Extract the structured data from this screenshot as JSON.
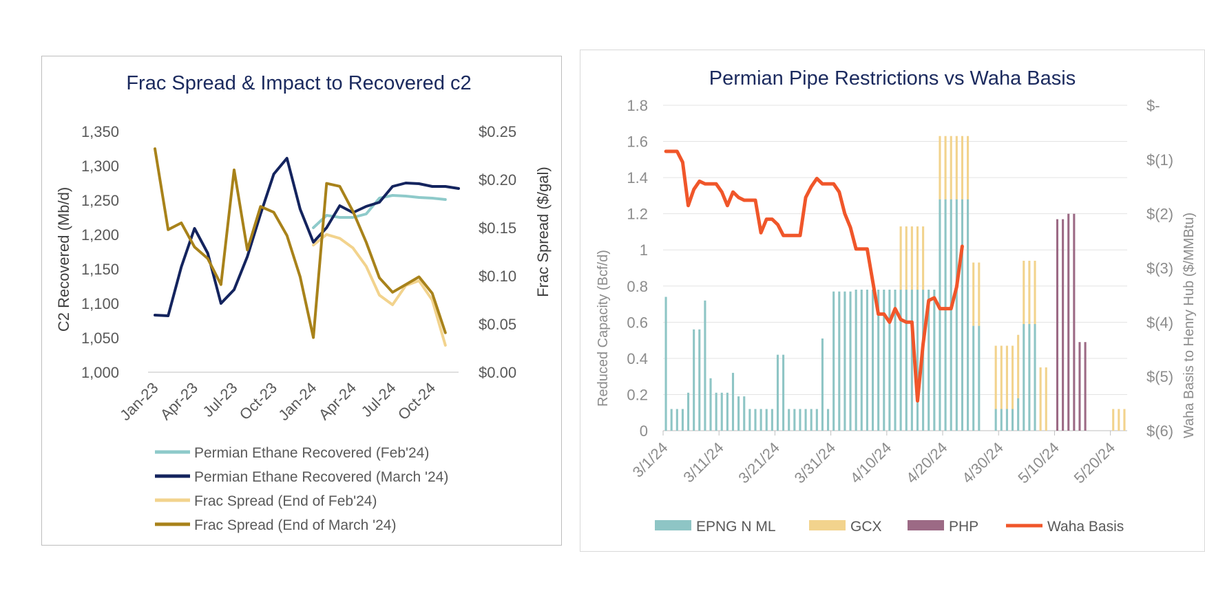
{
  "chart_data": [
    {
      "type": "line",
      "title": "Frac Spread & Impact to Recovered c2",
      "ylabel": "C2 Recovered (Mb/d)",
      "y2label": "Frac Spread ($/gal)",
      "ylim": [
        1000,
        1350
      ],
      "y2lim": [
        0.0,
        0.25
      ],
      "y_ticks": [
        "1,000",
        "1,050",
        "1,100",
        "1,150",
        "1,200",
        "1,250",
        "1,300",
        "1,350"
      ],
      "y2_ticks": [
        "$0.00",
        "$0.05",
        "$0.10",
        "$0.15",
        "$0.20",
        "$0.25"
      ],
      "x_ticks": [
        "Jan-23",
        "Apr-23",
        "Jul-23",
        "Oct-23",
        "Jan-24",
        "Apr-24",
        "Jul-24",
        "Oct-24"
      ],
      "x_tick_index": [
        0,
        3,
        6,
        9,
        12,
        15,
        18,
        21
      ],
      "grid": "horizontal",
      "legend": "bottom",
      "series": [
        {
          "name": "Permian Ethane Recovered (Feb'24)",
          "axis": "left",
          "color": "#8ecaca",
          "start_index": 12,
          "values": [
            1210,
            1228,
            1225,
            1225,
            1230,
            1253,
            1257,
            1256,
            1254,
            1253,
            1251
          ]
        },
        {
          "name": "Permian Ethane Recovered (March '24)",
          "axis": "left",
          "color": "#14245e",
          "start_index": 0,
          "values": [
            1083,
            1082,
            1153,
            1209,
            1173,
            1100,
            1120,
            1168,
            1230,
            1288,
            1311,
            1237,
            1189,
            1210,
            1242,
            1232,
            1241,
            1247,
            1270,
            1275,
            1274,
            1270,
            1270,
            1267
          ]
        },
        {
          "name": "Frac Spread (End of Feb'24)",
          "axis": "right",
          "color": "#f2d38d",
          "start_index": 12,
          "values": [
            0.132,
            0.143,
            0.139,
            0.129,
            0.11,
            0.08,
            0.07,
            0.09,
            0.095,
            0.075,
            0.028
          ]
        },
        {
          "name": "Frac Spread (End of March '24)",
          "axis": "right",
          "color": "#a8821a",
          "start_index": 0,
          "values": [
            0.232,
            0.148,
            0.155,
            0.13,
            0.118,
            0.091,
            0.21,
            0.127,
            0.172,
            0.166,
            0.142,
            0.099,
            0.036,
            0.196,
            0.193,
            0.167,
            0.135,
            0.098,
            0.083,
            0.091,
            0.099,
            0.082,
            0.041
          ]
        }
      ]
    },
    {
      "type": "bar+line",
      "title": "Permian Pipe Restrictions vs Waha Basis",
      "ylabel": "Reduced Capacity (Bcf/d)",
      "y2label": "Waha Basis to Henry Hub ($/MMBtu)",
      "ylim": [
        0,
        1.8
      ],
      "y2lim": [
        -6,
        0
      ],
      "y_ticks": [
        "0",
        "0.2",
        "0.4",
        "0.6",
        "0.8",
        "1",
        "1.2",
        "1.4",
        "1.6",
        "1.8"
      ],
      "y2_ticks": [
        "$-",
        "$(1)",
        "$(2)",
        "$(3)",
        "$(4)",
        "$(5)",
        "$(6)"
      ],
      "x_ticks": [
        "3/1/24",
        "3/11/24",
        "3/21/24",
        "3/31/24",
        "4/10/24",
        "4/20/24",
        "4/30/24",
        "5/10/24",
        "5/20/24"
      ],
      "x_tick_day": [
        0,
        10,
        20,
        30,
        40,
        50,
        60,
        70,
        80
      ],
      "days": 83,
      "grid": "horizontal",
      "legend": "bottom",
      "bar_series": [
        {
          "name": "EPNG N ML",
          "color": "#8ec5c5",
          "values": [
            0.74,
            0.12,
            0.12,
            0.12,
            0.21,
            0.56,
            0.56,
            0.72,
            0.29,
            0.21,
            0.21,
            0.21,
            0.32,
            0.19,
            0.19,
            0.12,
            0.12,
            0.12,
            0.12,
            0.12,
            0.42,
            0.42,
            0.12,
            0.12,
            0.12,
            0.12,
            0.12,
            0.12,
            0.51,
            0.12,
            0.77,
            0.77,
            0.77,
            0.77,
            0.78,
            0.78,
            0.78,
            0.78,
            0.78,
            0.78,
            0.78,
            0.78,
            0.78,
            0.78,
            0.78,
            0.78,
            0.78,
            0.78,
            0.78,
            1.28,
            1.28,
            1.28,
            1.28,
            1.28,
            1.28,
            0.58,
            0.58,
            0,
            0,
            0.12,
            0.12,
            0.12,
            0.12,
            0.18,
            0.59,
            0.59,
            0.59,
            0,
            0,
            0,
            0,
            0,
            0,
            0,
            0,
            0,
            0,
            0,
            0,
            0,
            0,
            0,
            0
          ]
        },
        {
          "name": "GCX",
          "color": "#f2d38d",
          "values": [
            0,
            0,
            0,
            0,
            0,
            0,
            0,
            0,
            0,
            0,
            0,
            0,
            0,
            0,
            0,
            0,
            0,
            0,
            0,
            0,
            0,
            0,
            0,
            0,
            0,
            0,
            0,
            0,
            0,
            0,
            0,
            0,
            0,
            0,
            0,
            0,
            0,
            0,
            0,
            0,
            0,
            0,
            0.35,
            0.35,
            0.35,
            0.35,
            0.35,
            0,
            0,
            0.35,
            0.35,
            0.35,
            0.35,
            0.35,
            0.35,
            0.35,
            0.35,
            0,
            0,
            0.35,
            0.35,
            0.35,
            0.35,
            0.35,
            0.35,
            0.35,
            0.35,
            0.35,
            0.35,
            0,
            0,
            0,
            0,
            0,
            0,
            0,
            0,
            0,
            0,
            0,
            0.12,
            0.12,
            0.12
          ]
        },
        {
          "name": "PHP",
          "color": "#9c6a85",
          "values": [
            0,
            0,
            0,
            0,
            0,
            0,
            0,
            0,
            0,
            0,
            0,
            0,
            0,
            0,
            0,
            0,
            0,
            0,
            0,
            0,
            0,
            0,
            0,
            0,
            0,
            0,
            0,
            0,
            0,
            0,
            0,
            0,
            0,
            0,
            0,
            0,
            0,
            0,
            0,
            0,
            0,
            0,
            0,
            0,
            0,
            0,
            0,
            0,
            0,
            0,
            0,
            0,
            0,
            0,
            0,
            0,
            0,
            0,
            0,
            0,
            0,
            0,
            0,
            0,
            0,
            0,
            0,
            0,
            0,
            0,
            1.17,
            1.17,
            1.2,
            1.2,
            0.49,
            0.49,
            0,
            0,
            0,
            0,
            0,
            0,
            0
          ]
        }
      ],
      "line_series": {
        "name": "Waha Basis",
        "color": "#f0562a",
        "axis": "right",
        "values": [
          -0.85,
          -0.85,
          -0.85,
          -1.05,
          -1.85,
          -1.55,
          -1.4,
          -1.45,
          -1.45,
          -1.45,
          -1.6,
          -1.85,
          -1.6,
          -1.7,
          -1.75,
          -1.75,
          -1.75,
          -2.35,
          -2.1,
          -2.1,
          -2.2,
          -2.4,
          -2.4,
          -2.4,
          -2.4,
          -1.7,
          -1.5,
          -1.35,
          -1.45,
          -1.45,
          -1.45,
          -1.6,
          -2.0,
          -2.25,
          -2.65,
          -2.65,
          -2.65,
          -3.25,
          -3.85,
          -3.85,
          -4.0,
          -3.75,
          -3.95,
          -4.0,
          -4.0,
          -5.45,
          -4.4,
          -3.6,
          -3.55,
          -3.75,
          -3.75,
          -3.75,
          -3.35,
          -2.6
        ]
      }
    }
  ]
}
